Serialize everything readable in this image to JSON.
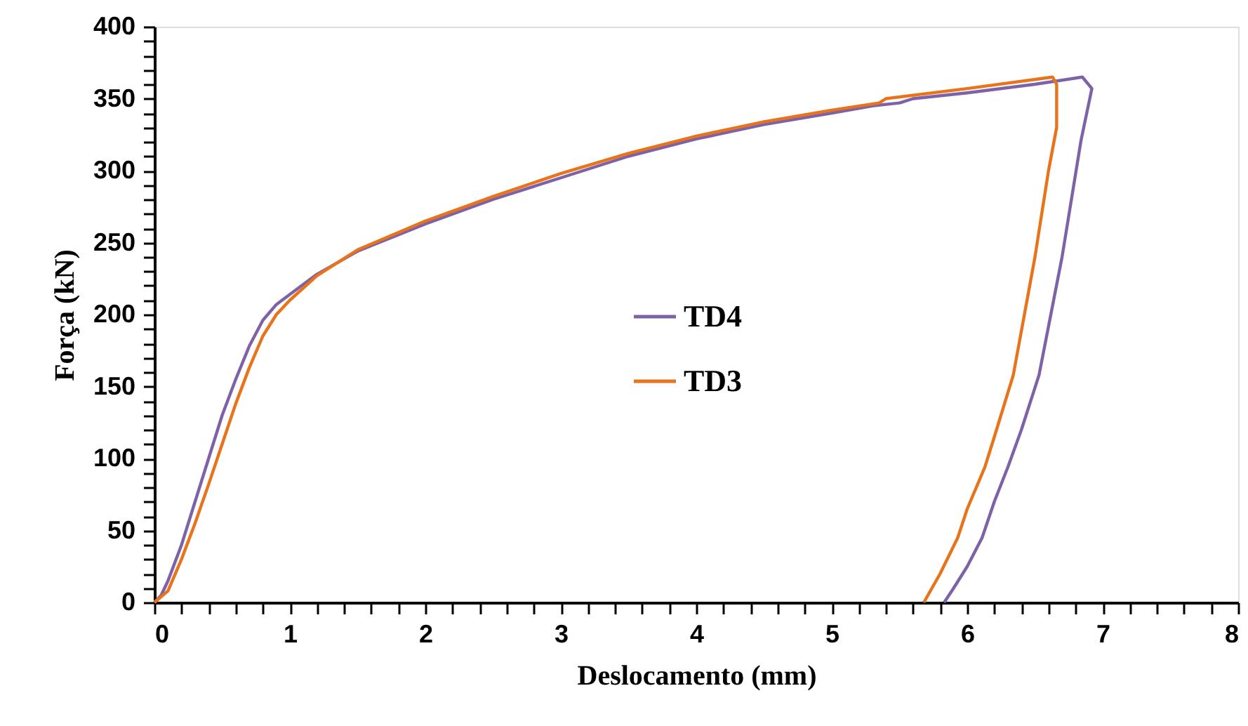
{
  "chart_data": {
    "type": "line",
    "xlabel": "Deslocamento (mm)",
    "ylabel": "Força (kN)",
    "xlim": [
      0,
      8
    ],
    "ylim": [
      0,
      400
    ],
    "xticks": [
      0,
      {
        "value": 0.2,
        "label": null
      },
      {
        "value": 0.4,
        "label": null
      },
      {
        "value": 0.6,
        "label": null
      },
      {
        "value": 0.8,
        "label": null
      },
      1,
      {
        "value": 1.2,
        "label": null
      },
      {
        "value": 1.4,
        "label": null
      },
      {
        "value": 1.6,
        "label": null
      },
      {
        "value": 1.8,
        "label": null
      },
      2,
      {
        "value": 2.2,
        "label": null
      },
      {
        "value": 2.4,
        "label": null
      },
      {
        "value": 2.6,
        "label": null
      },
      {
        "value": 2.8,
        "label": null
      },
      3,
      {
        "value": 3.2,
        "label": null
      },
      {
        "value": 3.4,
        "label": null
      },
      {
        "value": 3.6,
        "label": null
      },
      {
        "value": 3.8,
        "label": null
      },
      4,
      {
        "value": 4.2,
        "label": null
      },
      {
        "value": 4.4,
        "label": null
      },
      {
        "value": 4.6,
        "label": null
      },
      {
        "value": 4.8,
        "label": null
      },
      5,
      {
        "value": 5.2,
        "label": null
      },
      {
        "value": 5.4,
        "label": null
      },
      {
        "value": 5.6,
        "label": null
      },
      {
        "value": 5.8,
        "label": null
      },
      6,
      {
        "value": 6.2,
        "label": null
      },
      {
        "value": 6.4,
        "label": null
      },
      {
        "value": 6.6,
        "label": null
      },
      {
        "value": 6.8,
        "label": null
      },
      7,
      {
        "value": 7.2,
        "label": null
      },
      {
        "value": 7.4,
        "label": null
      },
      {
        "value": 7.6,
        "label": null
      },
      {
        "value": 7.8,
        "label": null
      },
      8
    ],
    "yticks": [
      0,
      {
        "value": 10,
        "label": null
      },
      {
        "value": 20,
        "label": null
      },
      {
        "value": 30,
        "label": null
      },
      {
        "value": 40,
        "label": null
      },
      50,
      {
        "value": 60,
        "label": null
      },
      {
        "value": 70,
        "label": null
      },
      {
        "value": 80,
        "label": null
      },
      {
        "value": 90,
        "label": null
      },
      100,
      {
        "value": 110,
        "label": null
      },
      {
        "value": 120,
        "label": null
      },
      {
        "value": 130,
        "label": null
      },
      {
        "value": 140,
        "label": null
      },
      150,
      {
        "value": 160,
        "label": null
      },
      {
        "value": 170,
        "label": null
      },
      {
        "value": 180,
        "label": null
      },
      {
        "value": 190,
        "label": null
      },
      200,
      {
        "value": 210,
        "label": null
      },
      {
        "value": 220,
        "label": null
      },
      {
        "value": 230,
        "label": null
      },
      {
        "value": 240,
        "label": null
      },
      250,
      {
        "value": 260,
        "label": null
      },
      {
        "value": 270,
        "label": null
      },
      {
        "value": 280,
        "label": null
      },
      {
        "value": 290,
        "label": null
      },
      300,
      {
        "value": 310,
        "label": null
      },
      {
        "value": 320,
        "label": null
      },
      {
        "value": 330,
        "label": null
      },
      {
        "value": 340,
        "label": null
      },
      350,
      {
        "value": 360,
        "label": null
      },
      {
        "value": 370,
        "label": null
      },
      {
        "value": 380,
        "label": null
      },
      {
        "value": 390,
        "label": null
      },
      400
    ],
    "grid": false,
    "legend": "center",
    "marker": "none",
    "line_style": "solid",
    "series": [
      {
        "name": "TD4",
        "color": "#7e62a8",
        "x": [
          0,
          0.05,
          0.1,
          0.2,
          0.3,
          0.4,
          0.5,
          0.6,
          0.7,
          0.8,
          0.9,
          1.0,
          1.2,
          1.5,
          2,
          2.5,
          3,
          3.5,
          4,
          4.5,
          5,
          5.3,
          5.5,
          5.6,
          6,
          6.5,
          6.85,
          6.92,
          6.84,
          6.7,
          6.53,
          6.4,
          6.3,
          6.2,
          6.11,
          6.0,
          5.9,
          5.83
        ],
        "values": [
          0,
          5,
          15,
          40,
          70,
          100,
          130,
          155,
          178,
          196,
          207,
          214,
          228,
          244,
          263,
          280,
          295,
          310,
          322,
          332,
          340,
          345,
          347,
          350,
          354,
          360,
          365,
          357,
          321,
          240,
          158,
          120,
          94,
          70,
          45,
          25,
          10,
          0
        ]
      },
      {
        "name": "TD3",
        "color": "#e8731a",
        "x": [
          0,
          0.1,
          0.2,
          0.3,
          0.4,
          0.5,
          0.6,
          0.7,
          0.8,
          0.9,
          1.0,
          1.2,
          1.5,
          2,
          2.5,
          3,
          3.5,
          4,
          4.5,
          5,
          5.35,
          5.4,
          6,
          6.63,
          6.66,
          6.66,
          6.6,
          6.5,
          6.34,
          6.2,
          6.13,
          6.0,
          5.93,
          5.8,
          5.68
        ],
        "values": [
          0,
          8,
          30,
          55,
          82,
          110,
          138,
          163,
          185,
          200,
          210,
          227,
          245,
          265,
          282,
          298,
          312,
          324,
          334,
          342,
          347,
          350,
          357,
          365,
          360,
          330,
          300,
          240,
          158,
          115,
          94,
          65,
          45,
          20,
          0
        ]
      }
    ]
  }
}
